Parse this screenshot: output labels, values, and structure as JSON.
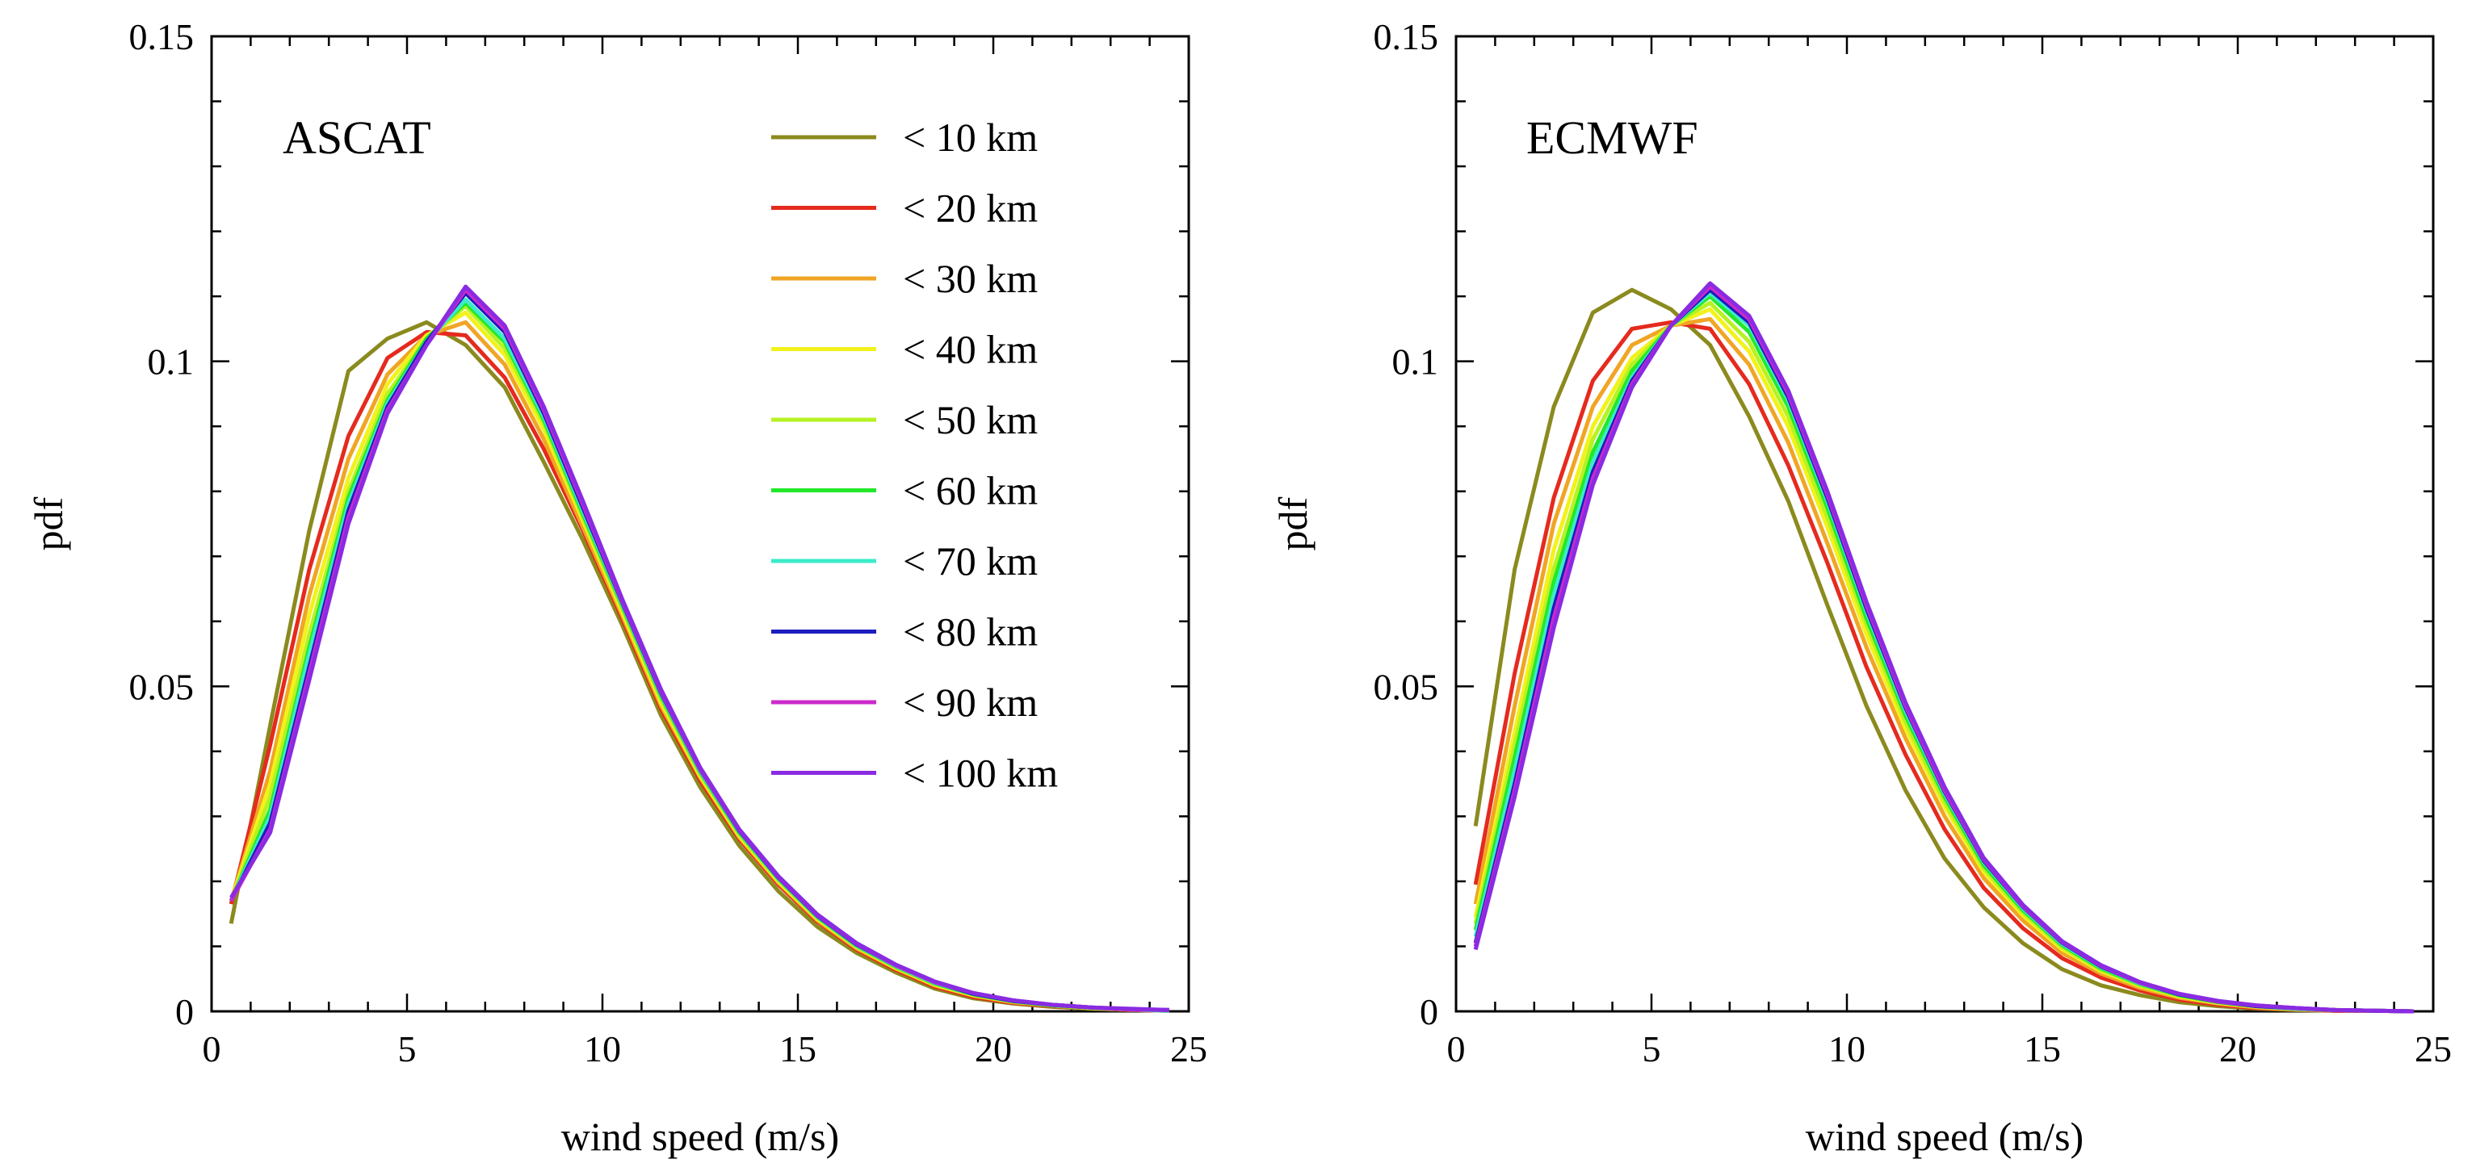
{
  "chart_data": [
    {
      "type": "line",
      "title": "ASCAT",
      "xlabel": "wind speed  (m/s)",
      "ylabel": "pdf",
      "xlim": [
        0,
        25
      ],
      "ylim": [
        0,
        0.15
      ],
      "x_ticks": [
        "0",
        "5",
        "10",
        "15",
        "20",
        "25"
      ],
      "y_ticks": [
        "0",
        "0.05",
        "0.1",
        "0.15"
      ],
      "x": [
        0.5,
        1.5,
        2.5,
        3.5,
        4.5,
        5.5,
        6.5,
        7.5,
        8.5,
        9.5,
        10.5,
        11.5,
        12.5,
        13.5,
        14.5,
        15.5,
        16.5,
        17.5,
        18.5,
        19.5,
        20.5,
        21.5,
        22.5,
        23.5,
        24.5
      ],
      "series": [
        {
          "name": "< 10 km",
          "color": "#8b8a1e",
          "values": [
            0.0135,
            0.044,
            0.074,
            0.0985,
            0.1035,
            0.106,
            0.1025,
            0.096,
            0.0845,
            0.0725,
            0.0595,
            0.0455,
            0.0345,
            0.0255,
            0.0185,
            0.013,
            0.009,
            0.006,
            0.0035,
            0.002,
            0.0012,
            0.0007,
            0.0004,
            0.0002,
            0.0001
          ]
        },
        {
          "name": "< 20 km",
          "color": "#e52a1e",
          "values": [
            0.0165,
            0.041,
            0.068,
            0.0885,
            0.1005,
            0.1045,
            0.104,
            0.0975,
            0.0865,
            0.074,
            0.0605,
            0.0465,
            0.0355,
            0.0265,
            0.0195,
            0.0138,
            0.0095,
            0.0064,
            0.0038,
            0.0022,
            0.0013,
            0.0008,
            0.0005,
            0.0002,
            0.0001
          ]
        },
        {
          "name": "< 30 km",
          "color": "#f0a525",
          "values": [
            0.017,
            0.037,
            0.064,
            0.085,
            0.098,
            0.104,
            0.106,
            0.0995,
            0.088,
            0.0745,
            0.061,
            0.047,
            0.036,
            0.0268,
            0.0198,
            0.014,
            0.0097,
            0.0066,
            0.004,
            0.0024,
            0.0014,
            0.0009,
            0.0005,
            0.0003,
            0.0001
          ]
        },
        {
          "name": "< 40 km",
          "color": "#f2f21c",
          "values": [
            0.017,
            0.035,
            0.061,
            0.082,
            0.0965,
            0.104,
            0.1075,
            0.101,
            0.0895,
            0.0755,
            0.0615,
            0.0475,
            0.0362,
            0.027,
            0.02,
            0.0142,
            0.0099,
            0.0067,
            0.0041,
            0.0025,
            0.0015,
            0.0009,
            0.0005,
            0.0003,
            0.0001
          ]
        },
        {
          "name": "< 50 km",
          "color": "#b6f223",
          "values": [
            0.017,
            0.033,
            0.058,
            0.08,
            0.095,
            0.1035,
            0.1085,
            0.102,
            0.0905,
            0.076,
            0.062,
            0.048,
            0.0365,
            0.0272,
            0.0202,
            0.0144,
            0.01,
            0.0068,
            0.0042,
            0.0026,
            0.0015,
            0.0009,
            0.0005,
            0.0003,
            0.0001
          ]
        },
        {
          "name": "< 60 km",
          "color": "#22e82a",
          "values": [
            0.017,
            0.031,
            0.056,
            0.079,
            0.094,
            0.1035,
            0.109,
            0.103,
            0.091,
            0.0765,
            0.0625,
            0.0485,
            0.0368,
            0.0275,
            0.0204,
            0.0145,
            0.0101,
            0.0069,
            0.0043,
            0.0026,
            0.0016,
            0.0009,
            0.0006,
            0.0003,
            0.0001
          ]
        },
        {
          "name": "< 70 km",
          "color": "#3cebc9",
          "values": [
            0.017,
            0.03,
            0.055,
            0.078,
            0.0935,
            0.103,
            0.1095,
            0.1035,
            0.0915,
            0.077,
            0.0628,
            0.0488,
            0.037,
            0.0277,
            0.0205,
            0.0146,
            0.0102,
            0.007,
            0.0044,
            0.0027,
            0.0016,
            0.001,
            0.0006,
            0.0003,
            0.0001
          ]
        },
        {
          "name": "< 80 km",
          "color": "#1c1cc0",
          "values": [
            0.017,
            0.029,
            0.053,
            0.077,
            0.093,
            0.103,
            0.1105,
            0.1045,
            0.092,
            0.0775,
            0.063,
            0.049,
            0.0372,
            0.0278,
            0.0206,
            0.0147,
            0.0103,
            0.0071,
            0.0045,
            0.0027,
            0.0016,
            0.001,
            0.0006,
            0.0003,
            0.0002
          ]
        },
        {
          "name": "< 90 km",
          "color": "#cc29cc",
          "values": [
            0.017,
            0.028,
            0.052,
            0.076,
            0.0925,
            0.1025,
            0.111,
            0.105,
            0.0925,
            0.078,
            0.0632,
            0.0492,
            0.0373,
            0.0279,
            0.0207,
            0.0148,
            0.0104,
            0.0071,
            0.0045,
            0.0028,
            0.0017,
            0.001,
            0.0006,
            0.0003,
            0.0002
          ]
        },
        {
          "name": "< 100 km",
          "color": "#8a2be2",
          "values": [
            0.0175,
            0.0275,
            0.051,
            0.075,
            0.092,
            0.1025,
            0.1115,
            0.1055,
            0.093,
            0.0785,
            0.0635,
            0.0495,
            0.0375,
            0.028,
            0.0208,
            0.0149,
            0.0105,
            0.0072,
            0.0046,
            0.0028,
            0.0017,
            0.001,
            0.0006,
            0.0004,
            0.0002
          ]
        }
      ]
    },
    {
      "type": "line",
      "title": "ECMWF",
      "xlabel": "wind speed  (m/s)",
      "ylabel": "pdf",
      "xlim": [
        0,
        25
      ],
      "ylim": [
        0,
        0.15
      ],
      "x_ticks": [
        "0",
        "5",
        "10",
        "15",
        "20",
        "25"
      ],
      "y_ticks": [
        "0",
        "0.05",
        "0.1",
        "0.15"
      ],
      "x": [
        0.5,
        1.5,
        2.5,
        3.5,
        4.5,
        5.5,
        6.5,
        7.5,
        8.5,
        9.5,
        10.5,
        11.5,
        12.5,
        13.5,
        14.5,
        15.5,
        16.5,
        17.5,
        18.5,
        19.5,
        20.5,
        21.5,
        22.5,
        23.5,
        24.5
      ],
      "series": [
        {
          "name": "< 10 km",
          "color": "#8b8a1e",
          "values": [
            0.0285,
            0.068,
            0.093,
            0.1075,
            0.111,
            0.108,
            0.1025,
            0.0915,
            0.0785,
            0.0625,
            0.047,
            0.034,
            0.0235,
            0.016,
            0.0105,
            0.0065,
            0.004,
            0.0025,
            0.0014,
            0.0008,
            0.0004,
            0.0002,
            0.0001,
            0.0001,
            0.0
          ]
        },
        {
          "name": "< 20 km",
          "color": "#e52a1e",
          "values": [
            0.0195,
            0.052,
            0.079,
            0.097,
            0.105,
            0.106,
            0.105,
            0.0965,
            0.084,
            0.069,
            0.053,
            0.0395,
            0.028,
            0.019,
            0.0128,
            0.0082,
            0.0052,
            0.0032,
            0.0018,
            0.001,
            0.0005,
            0.0003,
            0.0001,
            0.0001,
            0.0
          ]
        },
        {
          "name": "< 30 km",
          "color": "#f0a525",
          "values": [
            0.0165,
            0.047,
            0.075,
            0.093,
            0.1025,
            0.1055,
            0.1065,
            0.0995,
            0.0875,
            0.072,
            0.056,
            0.042,
            0.03,
            0.0205,
            0.014,
            0.009,
            0.0058,
            0.0036,
            0.0021,
            0.0012,
            0.0006,
            0.0003,
            0.0002,
            0.0001,
            0.0
          ]
        },
        {
          "name": "< 40 km",
          "color": "#f2f21c",
          "values": [
            0.0145,
            0.043,
            0.071,
            0.09,
            0.1005,
            0.1055,
            0.108,
            0.1015,
            0.09,
            0.0745,
            0.058,
            0.0435,
            0.0315,
            0.0215,
            0.0148,
            0.0096,
            0.0062,
            0.0039,
            0.0023,
            0.0013,
            0.0007,
            0.0004,
            0.0002,
            0.0001,
            0.0
          ]
        },
        {
          "name": "< 50 km",
          "color": "#b6f223",
          "values": [
            0.0135,
            0.041,
            0.068,
            0.088,
            0.0995,
            0.1055,
            0.109,
            0.103,
            0.0915,
            0.076,
            0.0595,
            0.0445,
            0.0322,
            0.022,
            0.0152,
            0.0099,
            0.0064,
            0.004,
            0.0024,
            0.0014,
            0.0008,
            0.0004,
            0.0002,
            0.0001,
            0.0
          ]
        },
        {
          "name": "< 60 km",
          "color": "#22e82a",
          "values": [
            0.0125,
            0.039,
            0.066,
            0.086,
            0.0985,
            0.1055,
            0.11,
            0.1045,
            0.093,
            0.0775,
            0.0605,
            0.0455,
            0.033,
            0.0225,
            0.0156,
            0.0102,
            0.0066,
            0.0042,
            0.0025,
            0.0014,
            0.0008,
            0.0004,
            0.0002,
            0.0001,
            0.0
          ]
        },
        {
          "name": "< 70 km",
          "color": "#3cebc9",
          "values": [
            0.0115,
            0.037,
            0.064,
            0.0845,
            0.0975,
            0.1055,
            0.1105,
            0.1055,
            0.094,
            0.0785,
            0.0615,
            0.0462,
            0.0335,
            0.023,
            0.0159,
            0.0104,
            0.0068,
            0.0043,
            0.0026,
            0.0015,
            0.0008,
            0.0004,
            0.0002,
            0.0001,
            0.0
          ]
        },
        {
          "name": "< 80 km",
          "color": "#1c1cc0",
          "values": [
            0.0105,
            0.035,
            0.062,
            0.083,
            0.097,
            0.1055,
            0.111,
            0.106,
            0.0945,
            0.079,
            0.062,
            0.0467,
            0.0338,
            0.0232,
            0.0161,
            0.0106,
            0.0069,
            0.0044,
            0.0026,
            0.0015,
            0.0008,
            0.0005,
            0.0002,
            0.0001,
            0.0
          ]
        },
        {
          "name": "< 90 km",
          "color": "#cc29cc",
          "values": [
            0.01,
            0.034,
            0.0605,
            0.082,
            0.0965,
            0.1055,
            0.1115,
            0.1065,
            0.095,
            0.0795,
            0.0625,
            0.047,
            0.034,
            0.0234,
            0.0162,
            0.0107,
            0.007,
            0.0044,
            0.0027,
            0.0015,
            0.0009,
            0.0005,
            0.0002,
            0.0001,
            0.0
          ]
        },
        {
          "name": "< 100 km",
          "color": "#8a2be2",
          "values": [
            0.0095,
            0.033,
            0.059,
            0.081,
            0.096,
            0.1055,
            0.112,
            0.107,
            0.0955,
            0.08,
            0.063,
            0.0475,
            0.0345,
            0.0236,
            0.0164,
            0.0108,
            0.0071,
            0.0045,
            0.0027,
            0.0016,
            0.0009,
            0.0005,
            0.0002,
            0.0001,
            0.0
          ]
        }
      ]
    }
  ]
}
